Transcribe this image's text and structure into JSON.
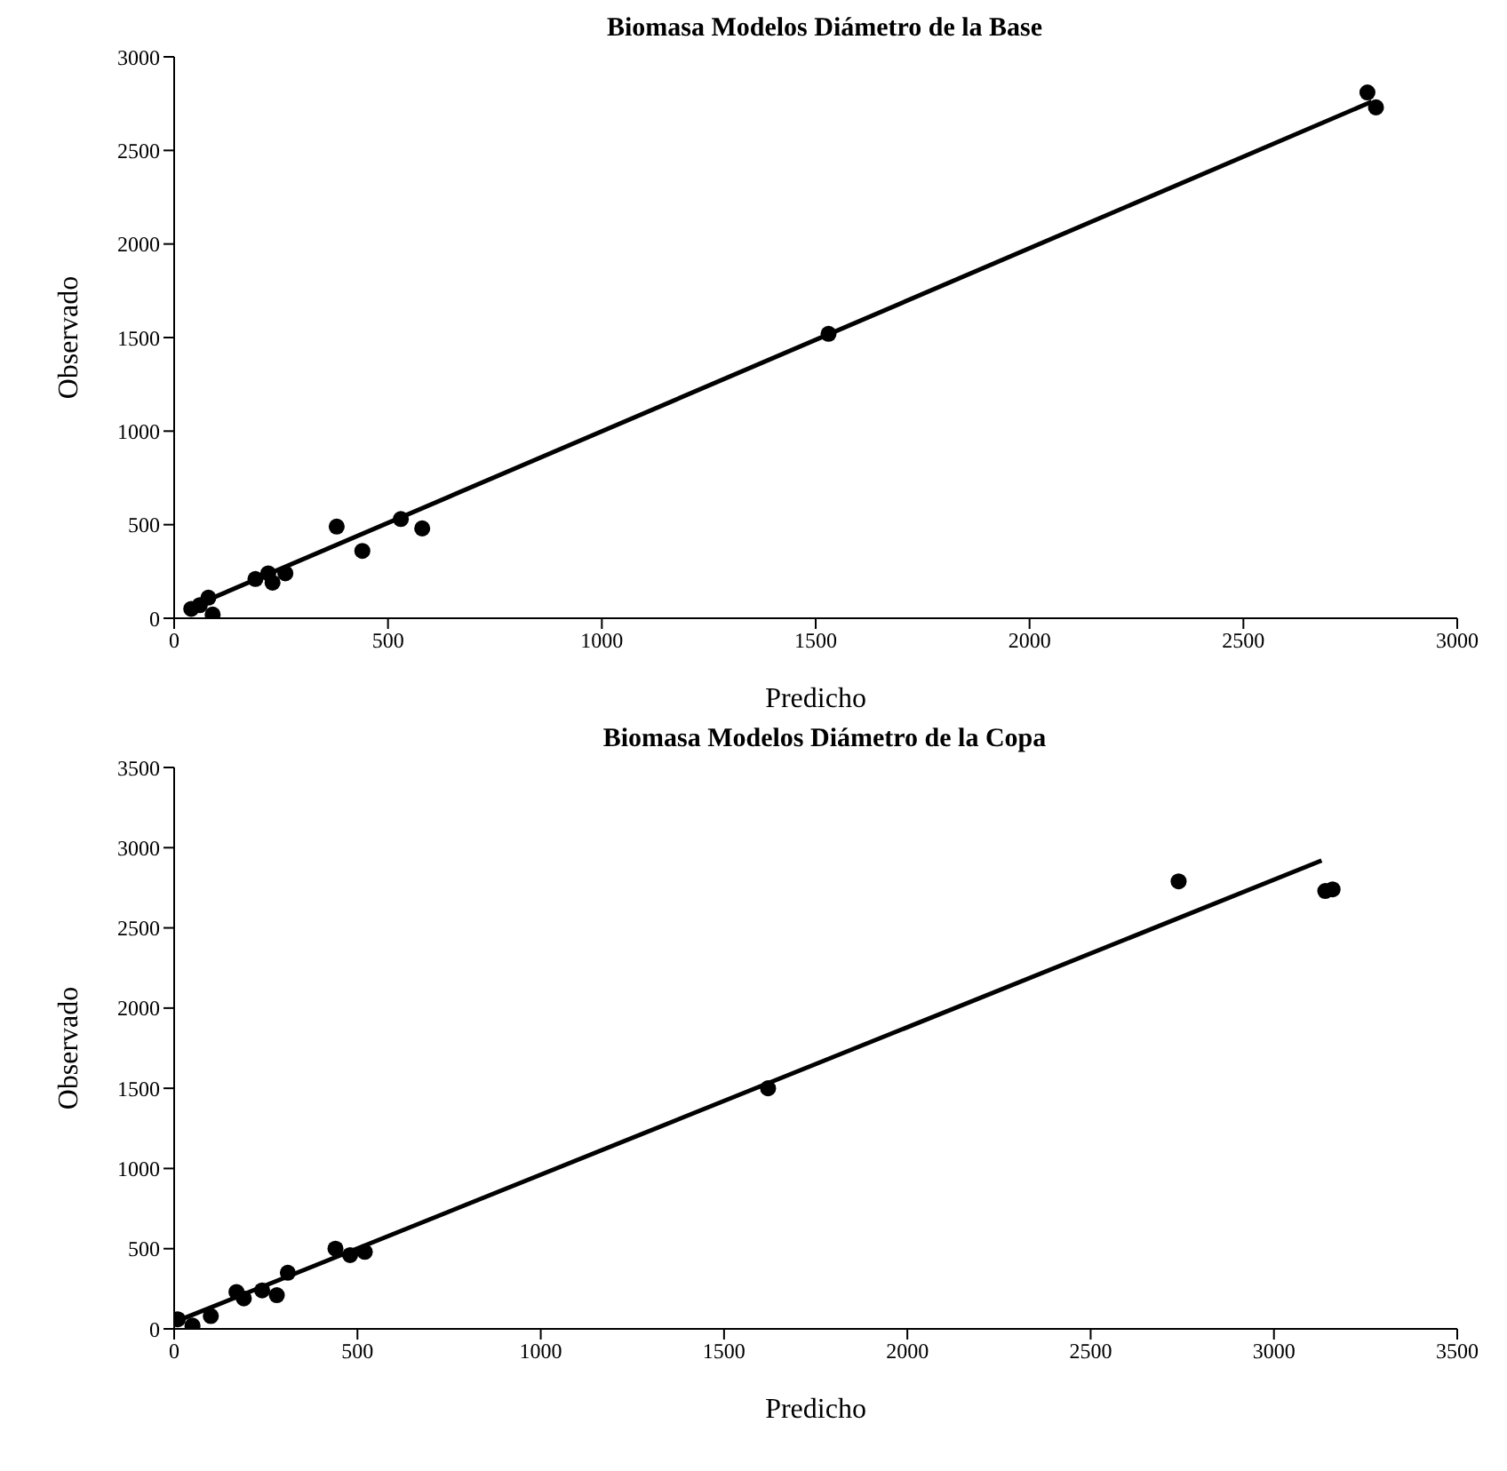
{
  "chart_data": [
    {
      "type": "scatter",
      "title": "Biomasa Modelos Diámetro de la Base",
      "xlabel": "Predicho",
      "ylabel": "Observado",
      "xlim": [
        0,
        3000
      ],
      "xticks": [
        0,
        500,
        1000,
        1500,
        2000,
        2500,
        3000
      ],
      "ylim": [
        0,
        3000
      ],
      "yticks": [
        0,
        500,
        1000,
        1500,
        2000,
        2500,
        3000
      ],
      "grid": false,
      "legend": false,
      "series": [
        {
          "color": "#000000",
          "marker": "circle",
          "x": [
            40,
            60,
            80,
            90,
            190,
            220,
            230,
            260,
            380,
            440,
            530,
            580,
            1530,
            2790,
            2810
          ],
          "values": [
            50,
            70,
            110,
            20,
            210,
            240,
            190,
            240,
            490,
            360,
            530,
            480,
            1520,
            2810,
            2730
          ]
        },
        {
          "type": "line",
          "color": "#000000",
          "marker": "none",
          "x": [
            40,
            2800
          ],
          "values": [
            60,
            2760
          ]
        }
      ]
    },
    {
      "type": "scatter",
      "title": "Biomasa Modelos Diámetro de la Copa",
      "xlabel": "Predicho",
      "ylabel": "Observado",
      "xlim": [
        0,
        3500
      ],
      "xticks": [
        0,
        500,
        1000,
        1500,
        2000,
        2500,
        3000,
        3500
      ],
      "ylim": [
        0,
        3500
      ],
      "yticks": [
        0,
        500,
        1000,
        1500,
        2000,
        2500,
        3000,
        3500
      ],
      "grid": false,
      "legend": false,
      "series": [
        {
          "color": "#000000",
          "marker": "circle",
          "x": [
            10,
            50,
            100,
            170,
            190,
            240,
            280,
            310,
            440,
            480,
            520,
            1620,
            2740,
            3140,
            3160
          ],
          "values": [
            60,
            20,
            80,
            230,
            190,
            240,
            210,
            350,
            500,
            460,
            480,
            1500,
            2790,
            2730,
            2740
          ]
        },
        {
          "type": "line",
          "color": "#000000",
          "marker": "none",
          "x": [
            20,
            3130
          ],
          "values": [
            60,
            2920
          ]
        }
      ]
    }
  ]
}
